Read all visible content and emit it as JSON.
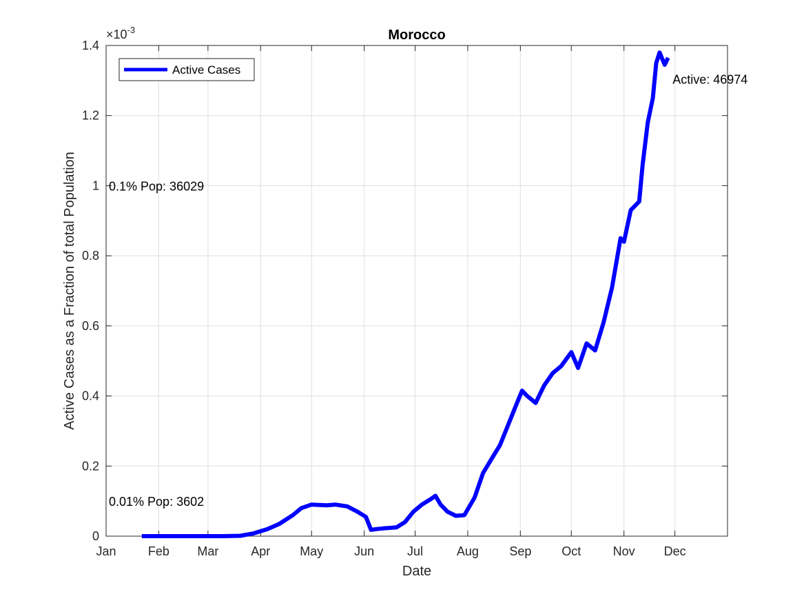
{
  "chart_data": {
    "type": "line",
    "title": "Morocco",
    "xlabel": "Date",
    "ylabel": "Active Cases as a Fraction of total Population",
    "y_exponent_label": "×10",
    "y_exponent_power": "-3",
    "y_scale_factor": 0.001,
    "xlim": [
      "Jan",
      "end of Dec"
    ],
    "ylim": [
      0,
      1.4
    ],
    "x_ticks": [
      "Jan",
      "Feb",
      "Mar",
      "Apr",
      "May",
      "Jun",
      "Jul",
      "Aug",
      "Sep",
      "Oct",
      "Nov",
      "Dec"
    ],
    "y_ticks": [
      "0",
      "0.2",
      "0.4",
      "0.6",
      "0.8",
      "1",
      "1.2",
      "1.4"
    ],
    "y_tick_values": [
      0,
      0.2,
      0.4,
      0.6,
      0.8,
      1.0,
      1.2,
      1.4
    ],
    "grid": true,
    "legend_position": "top-left",
    "series": [
      {
        "name": "Active Cases",
        "color": "#0000ff",
        "x": [
          "Jan 22",
          "Feb 15",
          "Mar 10",
          "Mar 20",
          "Mar 28",
          "Apr 5",
          "Apr 12",
          "Apr 20",
          "Apr 25",
          "May 1",
          "May 10",
          "May 15",
          "May 22",
          "May 28",
          "Jun 2",
          "Jun 5",
          "Jun 8",
          "Jun 12",
          "Jun 20",
          "Jun 25",
          "Jun 30",
          "Jul 5",
          "Jul 10",
          "Jul 13",
          "Jul 16",
          "Jul 20",
          "Jul 25",
          "Jul 30",
          "Aug 5",
          "Aug 10",
          "Aug 15",
          "Aug 20",
          "Aug 25",
          "Aug 30",
          "Sep 2",
          "Sep 5",
          "Sep 10",
          "Sep 15",
          "Sep 20",
          "Sep 25",
          "Oct 1",
          "Oct 5",
          "Oct 10",
          "Oct 15",
          "Oct 20",
          "Oct 25",
          "Oct 30",
          "Nov 1",
          "Nov 5",
          "Nov 10",
          "Nov 12",
          "Nov 15",
          "Nov 18",
          "Nov 20",
          "Nov 22",
          "Nov 25",
          "Nov 27"
        ],
        "values": [
          0,
          0,
          0,
          0.001,
          0.008,
          0.02,
          0.035,
          0.06,
          0.08,
          0.09,
          0.088,
          0.09,
          0.085,
          0.07,
          0.055,
          0.018,
          0.02,
          0.022,
          0.025,
          0.04,
          0.07,
          0.09,
          0.105,
          0.115,
          0.09,
          0.07,
          0.058,
          0.06,
          0.11,
          0.18,
          0.22,
          0.26,
          0.32,
          0.38,
          0.415,
          0.4,
          0.38,
          0.43,
          0.465,
          0.485,
          0.525,
          0.48,
          0.55,
          0.53,
          0.61,
          0.71,
          0.85,
          0.84,
          0.93,
          0.955,
          1.06,
          1.18,
          1.25,
          1.35,
          1.38,
          1.345,
          1.365
        ]
      }
    ],
    "annotations": [
      {
        "text": "Active: 46974",
        "x": "Nov 28",
        "y": 1.305
      },
      {
        "text": "0.1% Pop: 36029",
        "x": "Jan 1",
        "y": 1.0
      },
      {
        "text": "0.01% Pop: 3602",
        "x": "Jan 1",
        "y": 0.1
      }
    ]
  }
}
